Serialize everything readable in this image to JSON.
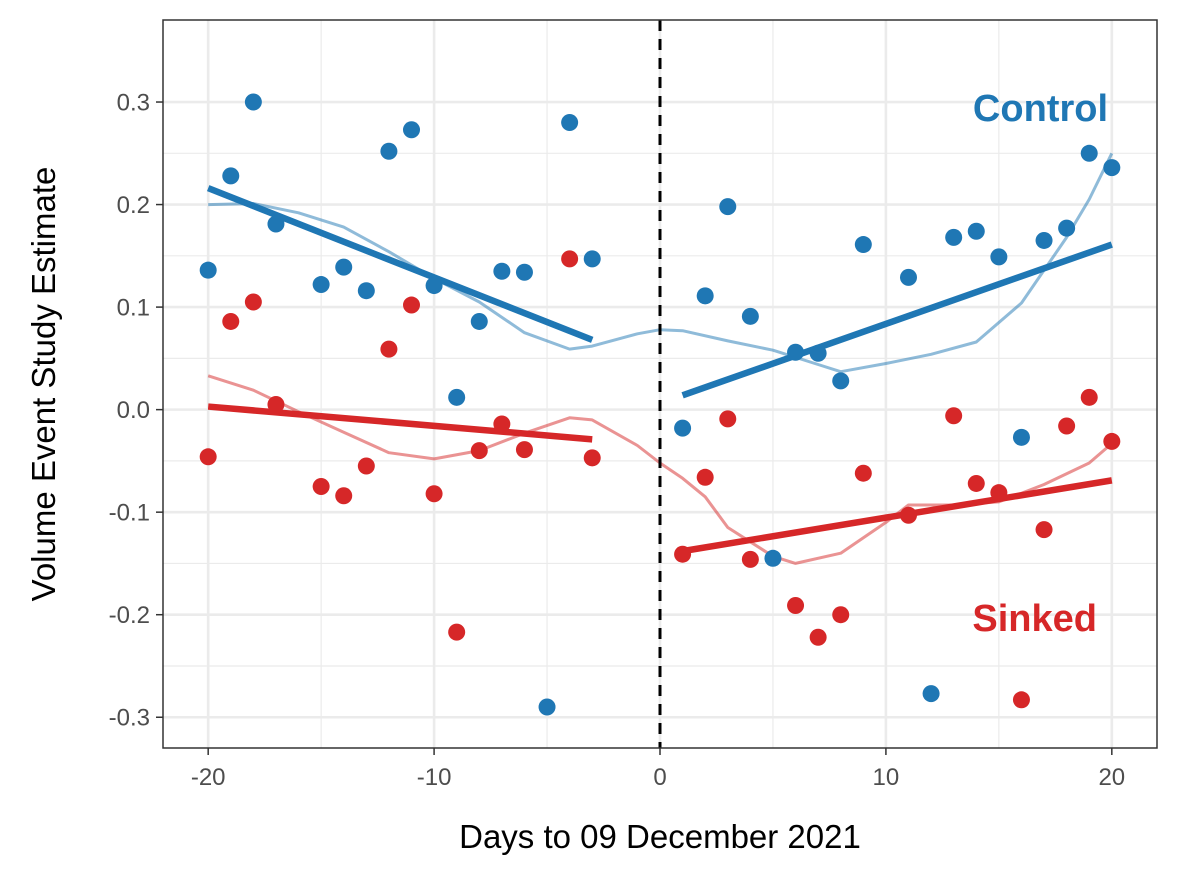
{
  "chart_data": {
    "type": "scatter",
    "xlabel": "Days to 09 December 2021",
    "ylabel": "Volume Event Study Estimate",
    "xlim": [
      -22,
      22
    ],
    "ylim": [
      -0.33,
      0.38
    ],
    "x_ticks": [
      -20,
      -10,
      0,
      10,
      20
    ],
    "x_tick_labels": [
      "-20",
      "-10",
      "0",
      "10",
      "20"
    ],
    "y_ticks": [
      -0.3,
      -0.2,
      -0.1,
      0.0,
      0.1,
      0.2,
      0.3
    ],
    "y_tick_labels": [
      "-0.3",
      "-0.2",
      "-0.1",
      "0.0",
      "0.1",
      "0.2",
      "0.3"
    ],
    "grid": true,
    "event_line_x": 0,
    "series": [
      {
        "name": "Control",
        "color": "#1f77b4",
        "label_position": "top-right",
        "points": [
          [
            -20,
            0.136
          ],
          [
            -19,
            0.228
          ],
          [
            -18,
            0.3
          ],
          [
            -17,
            0.181
          ],
          [
            -15,
            0.122
          ],
          [
            -14,
            0.139
          ],
          [
            -13,
            0.116
          ],
          [
            -12,
            0.252
          ],
          [
            -11,
            0.273
          ],
          [
            -10,
            0.121
          ],
          [
            -9,
            0.012
          ],
          [
            -8,
            0.086
          ],
          [
            -7,
            0.135
          ],
          [
            -6,
            0.134
          ],
          [
            -5,
            -0.29
          ],
          [
            -4,
            0.28
          ],
          [
            -3,
            0.147
          ],
          [
            1,
            -0.018
          ],
          [
            2,
            0.111
          ],
          [
            3,
            0.198
          ],
          [
            4,
            0.091
          ],
          [
            5,
            -0.145
          ],
          [
            6,
            0.056
          ],
          [
            7,
            0.055
          ],
          [
            8,
            0.028
          ],
          [
            9,
            0.161
          ],
          [
            11,
            0.129
          ],
          [
            12,
            -0.277
          ],
          [
            13,
            0.168
          ],
          [
            14,
            0.174
          ],
          [
            15,
            0.149
          ],
          [
            16,
            -0.027
          ],
          [
            17,
            0.165
          ],
          [
            18,
            0.177
          ],
          [
            19,
            0.25
          ],
          [
            20,
            0.236
          ]
        ],
        "fit_pre": [
          [
            -20,
            0.216
          ],
          [
            -3,
            0.068
          ]
        ],
        "fit_post": [
          [
            1,
            0.014
          ],
          [
            20,
            0.161
          ]
        ],
        "smooth": [
          [
            -20,
            0.2
          ],
          [
            -18,
            0.201
          ],
          [
            -16,
            0.192
          ],
          [
            -14,
            0.178
          ],
          [
            -12,
            0.154
          ],
          [
            -10,
            0.128
          ],
          [
            -8,
            0.105
          ],
          [
            -6,
            0.075
          ],
          [
            -4,
            0.059
          ],
          [
            -3,
            0.062
          ],
          [
            -1,
            0.074
          ],
          [
            0,
            0.078
          ],
          [
            1,
            0.077
          ],
          [
            3,
            0.067
          ],
          [
            5,
            0.058
          ],
          [
            7,
            0.044
          ],
          [
            8,
            0.037
          ],
          [
            10,
            0.045
          ],
          [
            12,
            0.054
          ],
          [
            14,
            0.066
          ],
          [
            16,
            0.104
          ],
          [
            18,
            0.168
          ],
          [
            19,
            0.205
          ],
          [
            20,
            0.25
          ]
        ]
      },
      {
        "name": "Sinked",
        "color": "#d62728",
        "label_position": "bottom-right",
        "points": [
          [
            -20,
            -0.046
          ],
          [
            -19,
            0.086
          ],
          [
            -18,
            0.105
          ],
          [
            -17,
            0.005
          ],
          [
            -15,
            -0.075
          ],
          [
            -14,
            -0.084
          ],
          [
            -13,
            -0.055
          ],
          [
            -12,
            0.059
          ],
          [
            -11,
            0.102
          ],
          [
            -10,
            -0.082
          ],
          [
            -9,
            -0.217
          ],
          [
            -8,
            -0.04
          ],
          [
            -7,
            -0.014
          ],
          [
            -6,
            -0.039
          ],
          [
            -4,
            0.147
          ],
          [
            -3,
            -0.047
          ],
          [
            1,
            -0.141
          ],
          [
            2,
            -0.066
          ],
          [
            3,
            -0.009
          ],
          [
            4,
            -0.146
          ],
          [
            6,
            -0.191
          ],
          [
            7,
            -0.222
          ],
          [
            8,
            -0.2
          ],
          [
            9,
            -0.062
          ],
          [
            11,
            -0.103
          ],
          [
            13,
            -0.006
          ],
          [
            14,
            -0.072
          ],
          [
            15,
            -0.081
          ],
          [
            16,
            -0.283
          ],
          [
            17,
            -0.117
          ],
          [
            18,
            -0.016
          ],
          [
            19,
            0.012
          ],
          [
            20,
            -0.031
          ]
        ],
        "fit_pre": [
          [
            -20,
            0.003
          ],
          [
            -3,
            -0.029
          ]
        ],
        "fit_post": [
          [
            1,
            -0.138
          ],
          [
            20,
            -0.069
          ]
        ],
        "smooth": [
          [
            -20,
            0.033
          ],
          [
            -18,
            0.019
          ],
          [
            -16,
            -0.002
          ],
          [
            -14,
            -0.022
          ],
          [
            -12,
            -0.042
          ],
          [
            -10,
            -0.048
          ],
          [
            -8,
            -0.04
          ],
          [
            -6,
            -0.023
          ],
          [
            -4,
            -0.008
          ],
          [
            -3,
            -0.01
          ],
          [
            -1,
            -0.035
          ],
          [
            0,
            -0.052
          ],
          [
            1,
            -0.067
          ],
          [
            2,
            -0.085
          ],
          [
            3,
            -0.115
          ],
          [
            5,
            -0.143
          ],
          [
            6,
            -0.15
          ],
          [
            8,
            -0.14
          ],
          [
            10,
            -0.11
          ],
          [
            11,
            -0.093
          ],
          [
            13,
            -0.093
          ],
          [
            15,
            -0.09
          ],
          [
            17,
            -0.073
          ],
          [
            19,
            -0.052
          ],
          [
            20,
            -0.033
          ]
        ]
      }
    ]
  }
}
